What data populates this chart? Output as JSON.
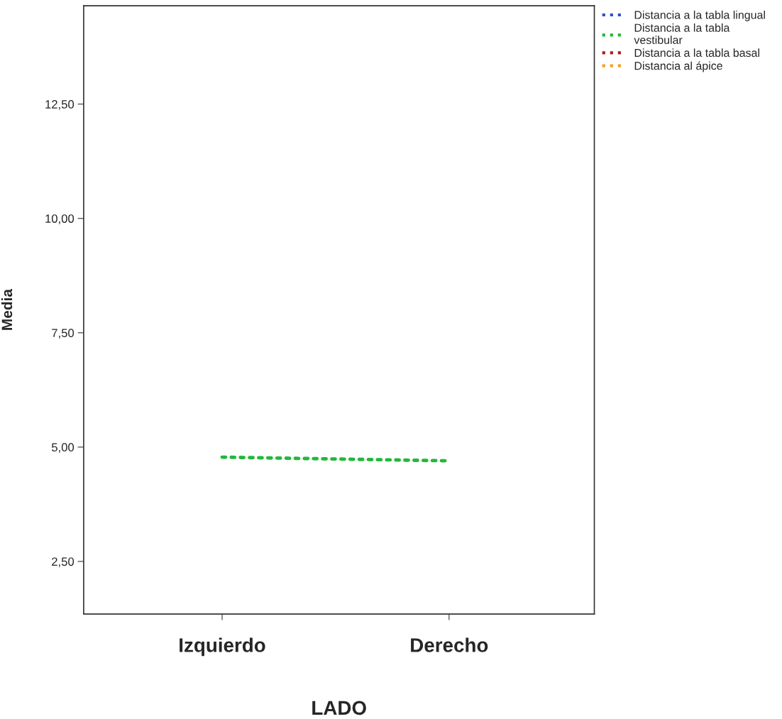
{
  "chart_data": {
    "type": "line",
    "xlabel": "LADO",
    "ylabel": "Media",
    "categories": [
      "Izquierdo",
      "Derecho"
    ],
    "series": [
      {
        "name": "Distancia a la tabla lingual",
        "color": "#3050c8",
        "values": [
          null,
          null
        ]
      },
      {
        "name": "Distancia a la tabla\nvestibular",
        "color": "#22b83a",
        "values": [
          4.78,
          4.7
        ]
      },
      {
        "name": "Distancia a la tabla basal",
        "color": "#b01c1c",
        "values": [
          null,
          null
        ]
      },
      {
        "name": "Distancia al ápice",
        "color": "#f5a020",
        "values": [
          null,
          null
        ]
      }
    ],
    "ylim": [
      1.35,
      14.65
    ],
    "yticks": [
      {
        "value": 2.5,
        "label": "2,50"
      },
      {
        "value": 5,
        "label": "5,00"
      },
      {
        "value": 7.5,
        "label": "7,50"
      },
      {
        "value": 10,
        "label": "10,00"
      },
      {
        "value": 12.5,
        "label": "12,50"
      }
    ],
    "grid": false,
    "legend": "top right",
    "line_style": "dotted",
    "marker": "none"
  }
}
